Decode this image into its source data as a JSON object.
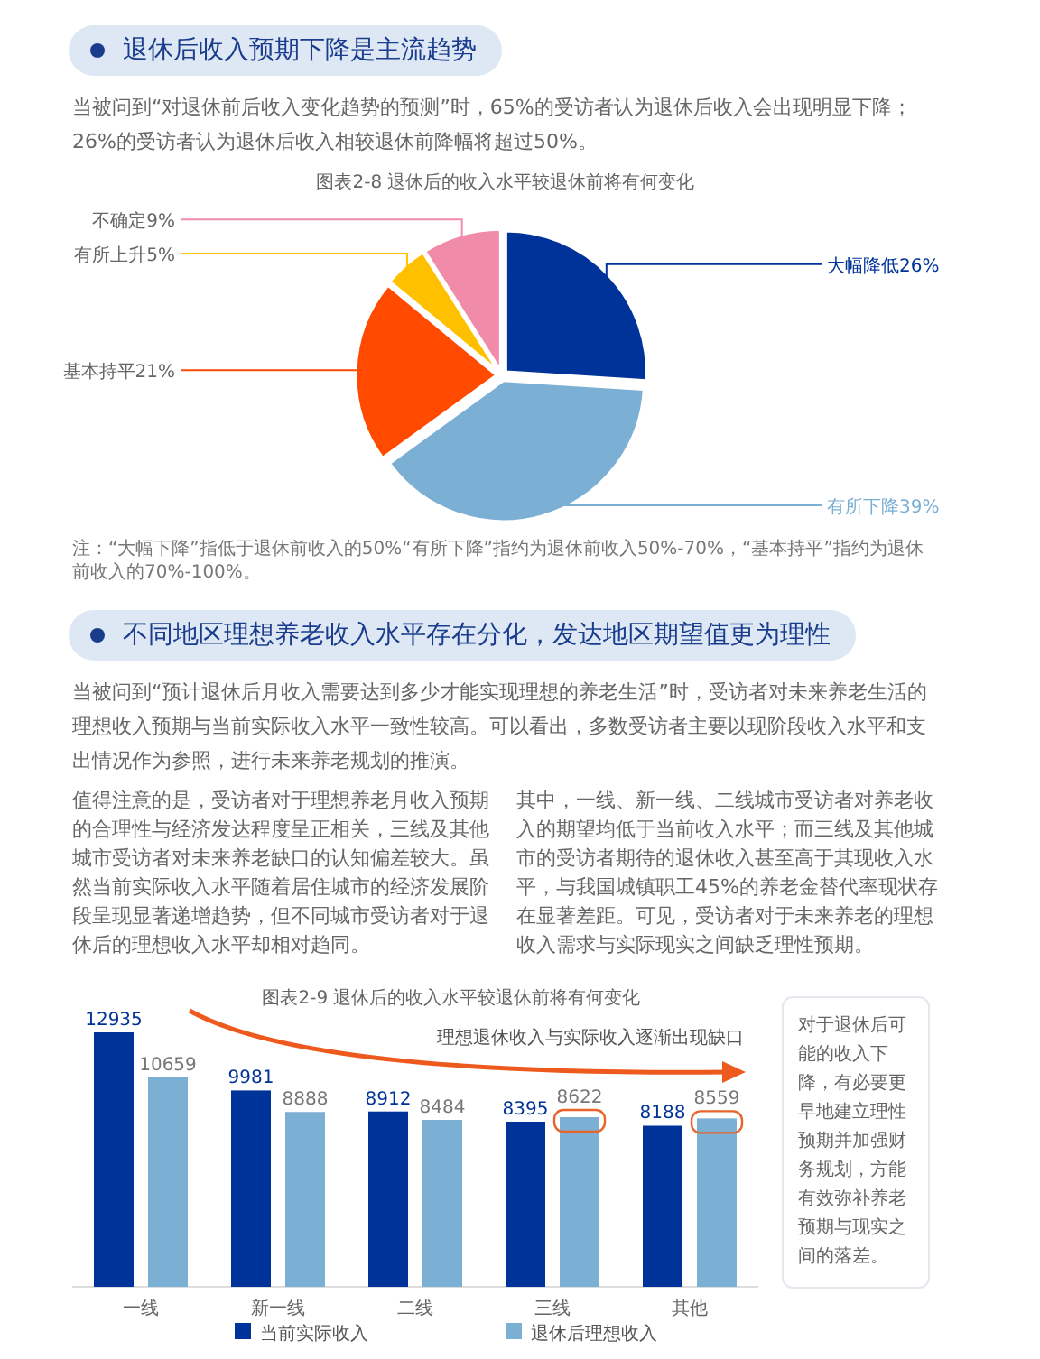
{
  "chart_data": [
    {
      "type": "pie",
      "title": "图表2-8 退休后的收入水平较退休前将有何变化",
      "categories": [
        "大幅降低",
        "有所下降",
        "基本持平",
        "有所上升",
        "不确定"
      ],
      "values": [
        26,
        39,
        21,
        5,
        9
      ],
      "value_labels": [
        "26%",
        "39%",
        "21%",
        "5%",
        "9%"
      ],
      "colors": [
        "#003399",
        "#7bafd4",
        "#ff4a00",
        "#ffc000",
        "#f08caa"
      ],
      "annotations": [
        "退休后收入预期下降是主流趋势",
        "当被问到“对退休前后收入变化趋势的预测”时，65%的受访者认为退休后收入会出现明显下降；26%的受访者认为退休后收入相较退休前降幅将超过50%。",
        "注：“大幅下降”指低于退休前收入的50%“有所下降”指约为退休前收入50%-70%，“基本持平”指约为退休前收入的70%-100%。"
      ]
    },
    {
      "type": "bar",
      "title": "图表2-9 退休后的收入水平较退休前将有何变化",
      "categories": [
        "一线",
        "新一线",
        "二线",
        "三线",
        "其他"
      ],
      "series": [
        {
          "name": "当前实际收入",
          "color": "#003399",
          "values": [
            12935,
            9981,
            8912,
            8395,
            8188
          ]
        },
        {
          "name": "退休后理想收入",
          "color": "#7bafd4",
          "values": [
            10659,
            8888,
            8484,
            8622,
            8559
          ]
        }
      ],
      "data_labels": true,
      "legend": "bottom",
      "annotations": [
        "不同地区理想养老收入水平存在分化，发达地区期望值更为理性",
        "当被问到“预计退休后月收入需要达到多少才能实现理想的养老生活”时，受访者对未来养老生活的理想收入预期与当前实际收入水平一致性较高。可以看出，多数受访者主要以现阶段收入水平和支出情况作为参照，进行未来养老规划的推演。",
        "值得注意的是，受访者对于理想养老月收入预期的合理性与经济发达程度呈正相关，三线及其他城市受访者对未来养老缺口的认知偏差较大。虽然当前实际收入水平随着居住城市的经济发展阶段呈现显著递增趋势，但不同城市受访者对于退休后的理想收入水平却相对趋同。",
        "其中，一线、新一线、二线城市受访者对养老收入的期望均低于当前收入水平；而三线及其他城市的受访者期待的退休收入甚至高于其现收入水平，与我国城镇职工45%的养老金替代率现状存在显著差距。可见，受访者对于未来养老的理想收入需求与实际现实之间缺乏理性预期。",
        "理想退休收入与实际收入逐渐出现缺口",
        "对于退休后可能的收入下降，有必要更早地建立理性预期并加强财务规划，方能有效弥补养老预期与现实之间的落差。"
      ]
    }
  ]
}
